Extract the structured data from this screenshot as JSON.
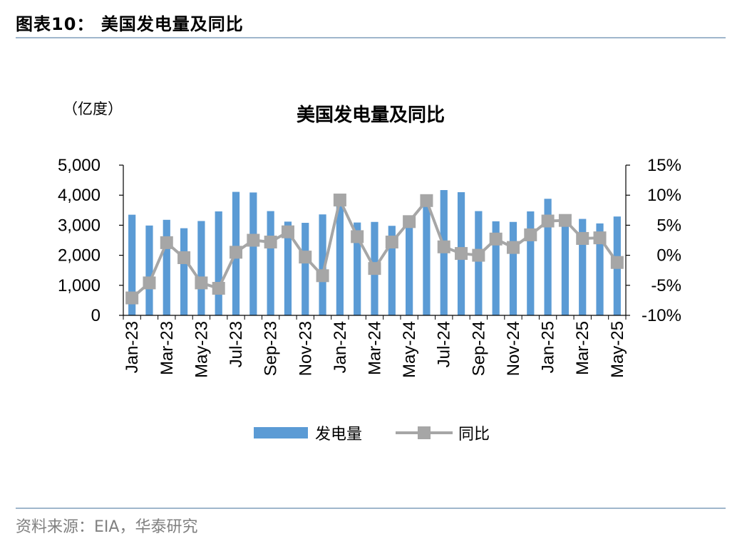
{
  "page": {
    "figure_title": "图表10：  美国发电量及同比",
    "source": "资料来源：EIA，华泰研究"
  },
  "chart_data": {
    "type": "bar+line",
    "title": "美国发电量及同比",
    "unit_label": "（亿度）",
    "categories": [
      "Jan-23",
      "Feb-23",
      "Mar-23",
      "Apr-23",
      "May-23",
      "Jun-23",
      "Jul-23",
      "Aug-23",
      "Sep-23",
      "Oct-23",
      "Nov-23",
      "Dec-23",
      "Jan-24",
      "Feb-24",
      "Mar-24",
      "Apr-24",
      "May-24",
      "Jun-24",
      "Jul-24",
      "Aug-24",
      "Sep-24",
      "Oct-24",
      "Nov-24",
      "Dec-24",
      "Jan-25",
      "Feb-25",
      "Mar-25",
      "Apr-25",
      "May-25"
    ],
    "x_tick_labels": [
      "Jan-23",
      "Mar-23",
      "May-23",
      "Jul-23",
      "Sep-23",
      "Nov-23",
      "Jan-24",
      "Mar-24",
      "May-24",
      "Jul-24",
      "Sep-24",
      "Nov-24",
      "Jan-25",
      "Mar-25",
      "May-25"
    ],
    "series": [
      {
        "name": "发电量",
        "type": "bar",
        "axis": "left",
        "color": "#5b9bd5",
        "values": [
          3350,
          2990,
          3180,
          2900,
          3140,
          3460,
          4110,
          4090,
          3470,
          3120,
          3080,
          3360,
          3870,
          3090,
          3110,
          2980,
          3260,
          3830,
          4170,
          4100,
          3470,
          3130,
          3110,
          3460,
          3880,
          3320,
          3210,
          3060,
          3290
        ]
      },
      {
        "name": "同比",
        "type": "line",
        "axis": "right",
        "color": "#a6a6a6",
        "values": [
          -7.1,
          -4.6,
          2.1,
          -0.4,
          -4.6,
          -5.5,
          0.5,
          2.5,
          2.2,
          3.9,
          -0.3,
          -3.4,
          9.2,
          3.1,
          -2.2,
          2.2,
          5.6,
          9.1,
          1.4,
          0.3,
          0.0,
          2.7,
          1.3,
          3.4,
          5.7,
          5.8,
          2.8,
          2.9,
          -1.2
        ]
      }
    ],
    "left_axis": {
      "min": 0,
      "max": 5000,
      "ticks": [
        0,
        1000,
        2000,
        3000,
        4000,
        5000
      ],
      "tick_labels": [
        "0",
        "1,000",
        "2,000",
        "3,000",
        "4,000",
        "5,000"
      ]
    },
    "right_axis": {
      "min": -10,
      "max": 15,
      "ticks": [
        -10,
        -5,
        0,
        5,
        10,
        15
      ],
      "tick_labels": [
        "-10%",
        "-5%",
        "0%",
        "5%",
        "10%",
        "15%"
      ]
    },
    "legend": {
      "position": "bottom",
      "items": [
        "发电量",
        "同比"
      ]
    },
    "grid": false
  }
}
